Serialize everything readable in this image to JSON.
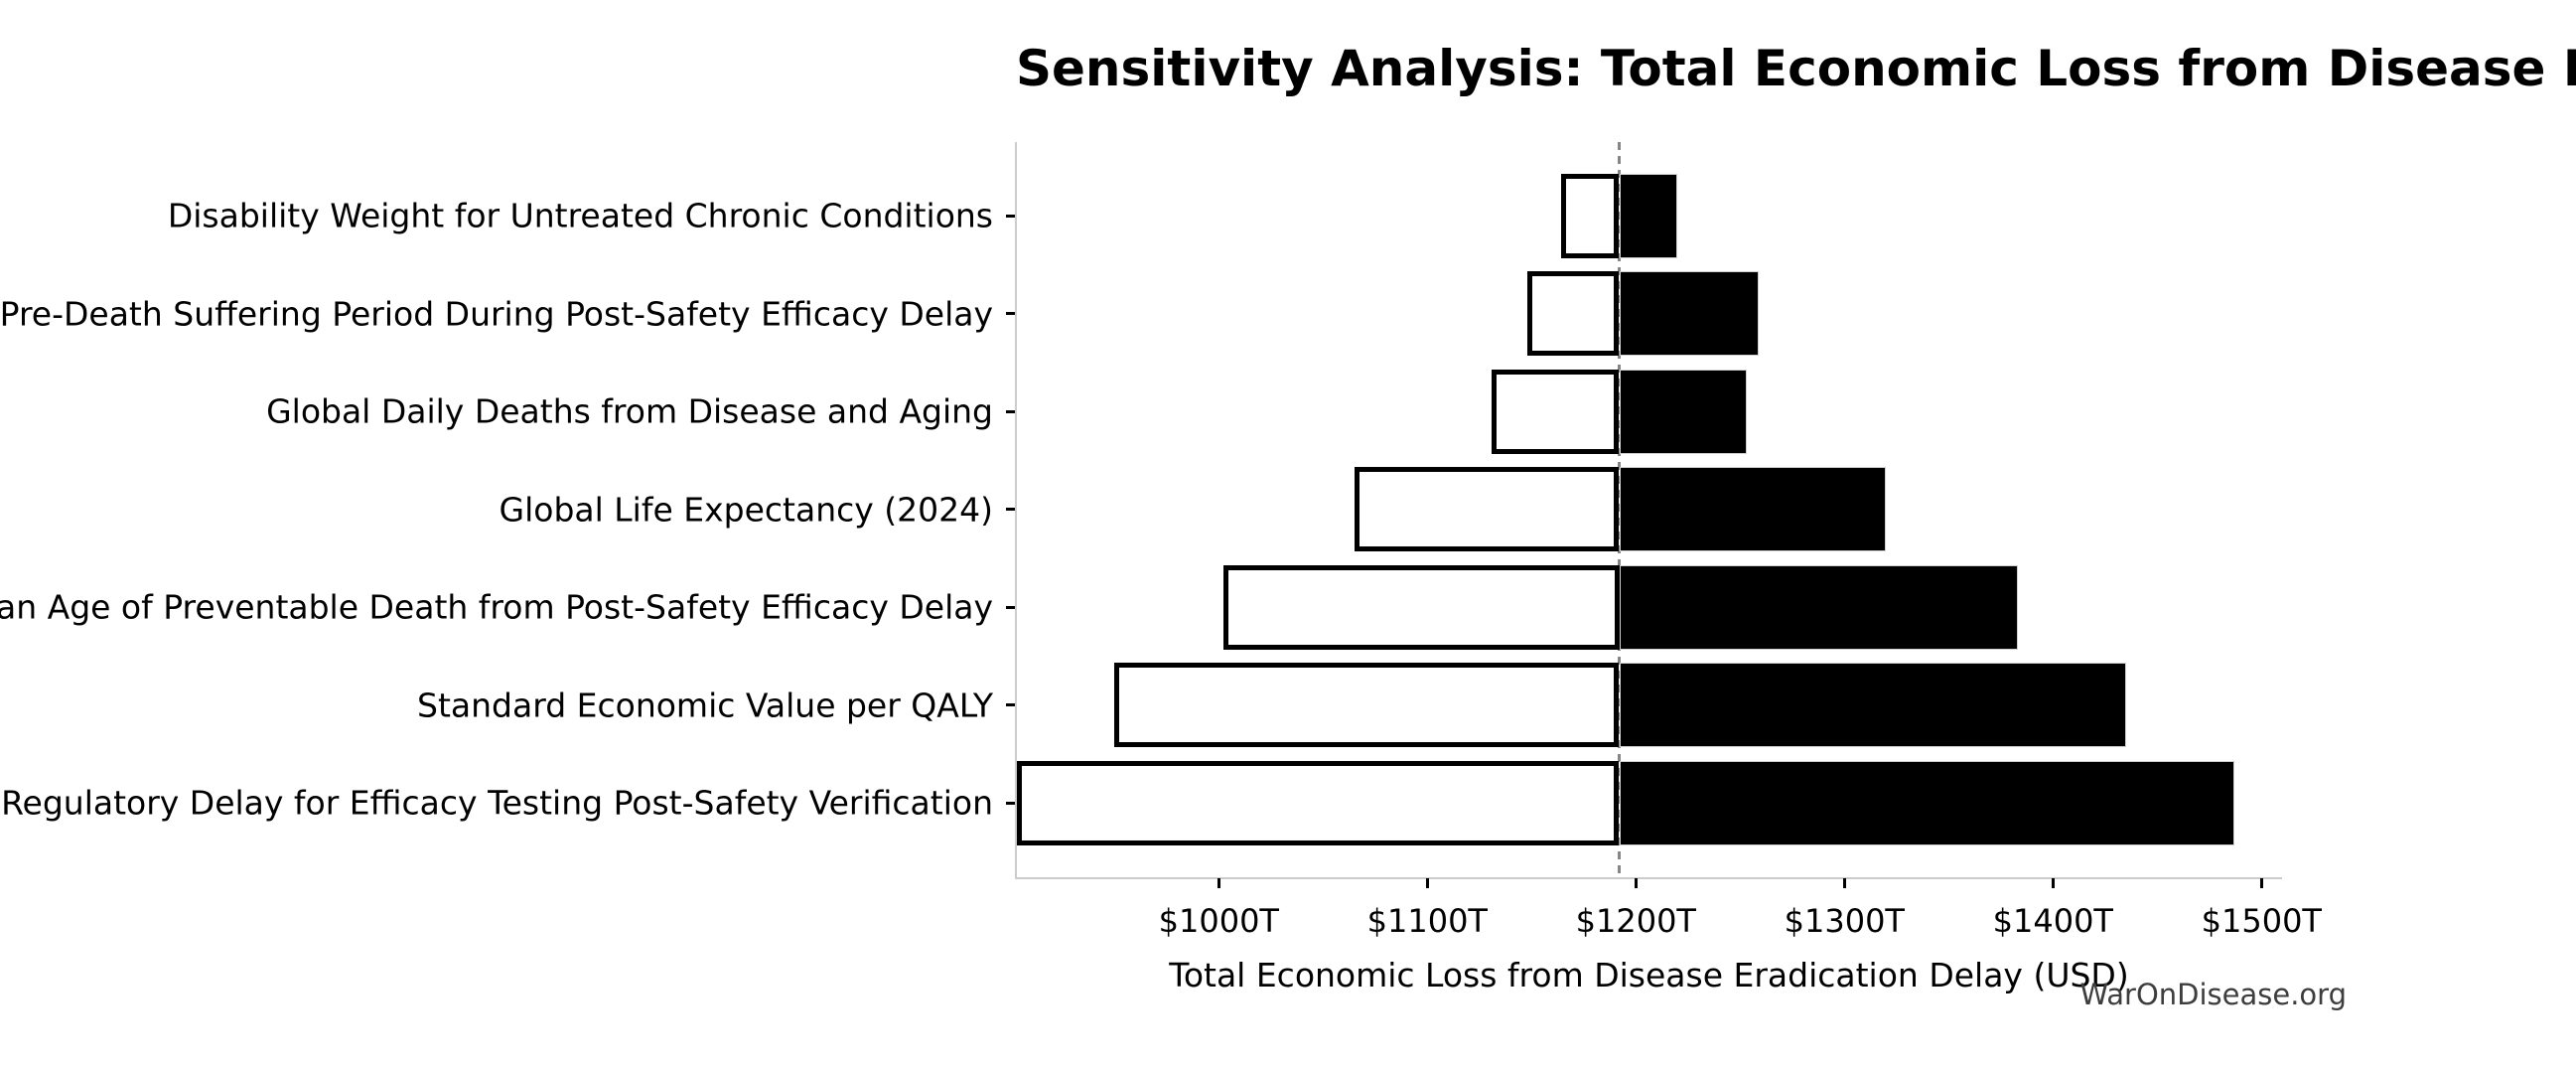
{
  "title": "Sensitivity Analysis: Total Economic Loss from Disease Eradication Delay",
  "watermark": "WarOnDisease.org",
  "chart_data": {
    "type": "bar",
    "subtype": "tornado-sensitivity",
    "orientation": "horizontal",
    "title": "Sensitivity Analysis: Total Economic Loss from Disease Eradication Delay",
    "xlabel": "Total Economic Loss from Disease Eradication Delay (USD)",
    "ylabel": "",
    "unit": "trillion USD",
    "baseline_value": 1192,
    "xlim": [
      903,
      1510
    ],
    "grid": false,
    "legend": "none",
    "x_ticks": [
      {
        "value": 1000,
        "label": "$1000T"
      },
      {
        "value": 1100,
        "label": "$1100T"
      },
      {
        "value": 1200,
        "label": "$1200T"
      },
      {
        "value": 1300,
        "label": "$1300T"
      },
      {
        "value": 1400,
        "label": "$1400T"
      },
      {
        "value": 1500,
        "label": "$1500T"
      }
    ],
    "rows": [
      {
        "label": "Disability Weight for Untreated Chronic Conditions",
        "low": 1164,
        "high": 1220
      },
      {
        "label": "Pre-Death Suffering Period During Post-Safety Efficacy Delay",
        "low": 1148,
        "high": 1259
      },
      {
        "label": "Global Daily Deaths from Disease and Aging",
        "low": 1131,
        "high": 1253
      },
      {
        "label": "Global Life Expectancy (2024)",
        "low": 1065,
        "high": 1320
      },
      {
        "label": "Mean Age of Preventable Death from Post-Safety Efficacy Delay",
        "low": 1002,
        "high": 1383
      },
      {
        "label": "Standard Economic Value per QALY",
        "low": 950,
        "high": 1435
      },
      {
        "label": "Regulatory Delay for Efficacy Testing Post-Safety Verification",
        "low": 903,
        "high": 1487
      }
    ],
    "colors": {
      "low_bar_fill": "#ffffff",
      "low_bar_edge": "#000000",
      "high_bar_fill": "#000000",
      "baseline_line": "#858585",
      "spine": "#cccccc",
      "tick": "#000000"
    }
  }
}
